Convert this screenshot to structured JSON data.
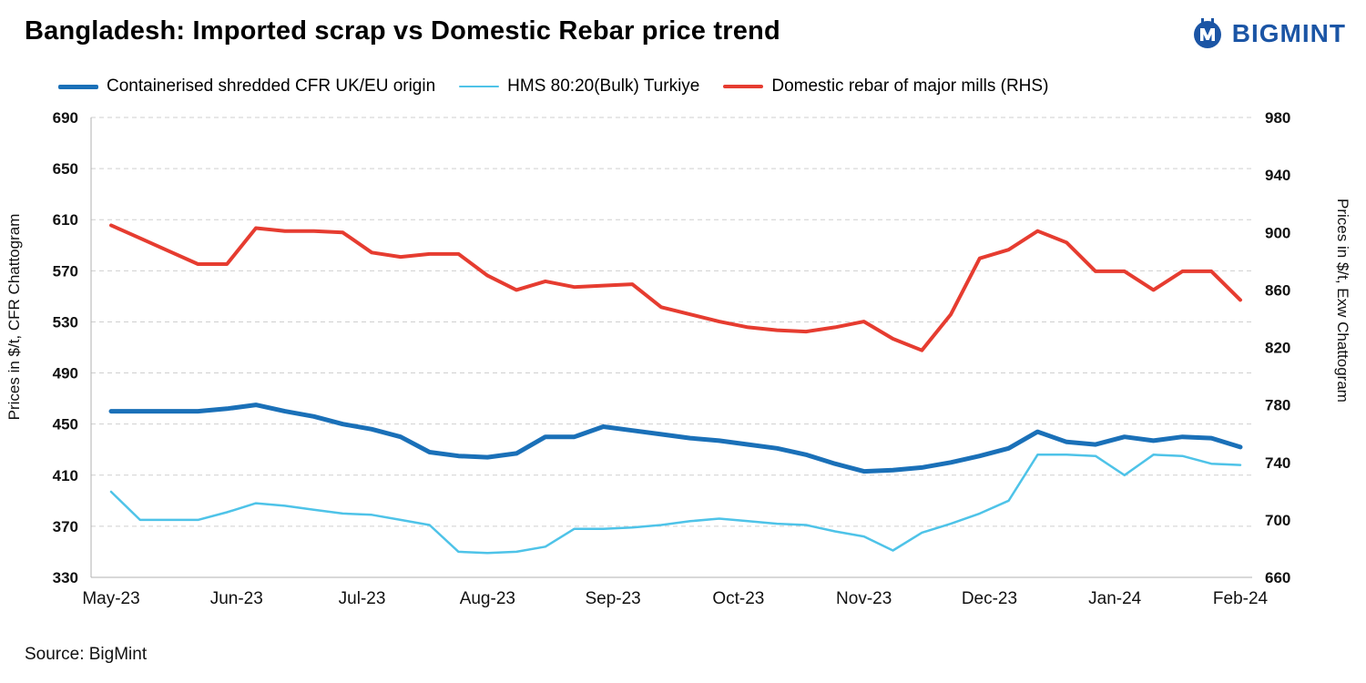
{
  "header": {
    "title": "Bangladesh: Imported scrap vs Domestic Rebar price trend",
    "brand": "BIGMINT",
    "brand_color": "#1b55a5"
  },
  "footer": {
    "source": "Source: BigMint"
  },
  "chart_data": {
    "type": "line",
    "title": "Bangladesh: Imported scrap vs Domestic Rebar price trend",
    "x_labels": [
      "May-23",
      "Jun-23",
      "Jul-23",
      "Aug-23",
      "Sep-23",
      "Oct-23",
      "Nov-23",
      "Dec-23",
      "Jan-24",
      "Feb-24"
    ],
    "frequency": "weekly",
    "grid": {
      "dashed": true,
      "color": "#cfcfcf",
      "axis_line_color": "#b0b0b0"
    },
    "legend_position": "top",
    "left_axis": {
      "title": "Prices in $/t, CFR Chattogram",
      "min": 330,
      "max": 690,
      "step": 40,
      "ticks": [
        330,
        370,
        410,
        450,
        490,
        530,
        570,
        610,
        650,
        690
      ]
    },
    "right_axis": {
      "title": "Prices in $/t, Exw Chattogram",
      "min": 660,
      "max": 980,
      "step": 40,
      "ticks": [
        660,
        700,
        740,
        780,
        820,
        860,
        900,
        940,
        980
      ]
    },
    "series": [
      {
        "name": "Containerised shredded CFR UK/EU origin",
        "axis": "left",
        "color": "#1a70b8",
        "width": 5,
        "values": [
          460,
          460,
          460,
          460,
          462,
          465,
          460,
          456,
          450,
          446,
          440,
          428,
          425,
          424,
          427,
          440,
          440,
          448,
          445,
          442,
          439,
          437,
          434,
          431,
          426,
          419,
          413,
          414,
          416,
          420,
          425,
          431,
          444,
          436,
          434,
          440,
          437,
          440,
          439,
          432
        ]
      },
      {
        "name": "HMS 80:20(Bulk) Turkiye",
        "axis": "left",
        "color": "#4ec3e8",
        "width": 2.5,
        "values": [
          397,
          375,
          375,
          375,
          381,
          388,
          386,
          383,
          380,
          379,
          375,
          371,
          350,
          349,
          350,
          354,
          368,
          368,
          369,
          371,
          374,
          376,
          374,
          372,
          371,
          366,
          362,
          351,
          365,
          372,
          380,
          390,
          426,
          426,
          425,
          410,
          426,
          425,
          419,
          418
        ]
      },
      {
        "name": "Domestic rebar of major mills (RHS)",
        "axis": "right",
        "color": "#e63c30",
        "width": 4,
        "values": [
          905,
          896,
          887,
          878,
          878,
          903,
          901,
          901,
          900,
          886,
          883,
          885,
          885,
          870,
          860,
          866,
          862,
          863,
          864,
          848,
          843,
          838,
          834,
          832,
          831,
          834,
          838,
          826,
          818,
          843,
          882,
          888,
          901,
          893,
          873,
          873,
          860,
          873,
          873,
          853
        ]
      }
    ]
  }
}
